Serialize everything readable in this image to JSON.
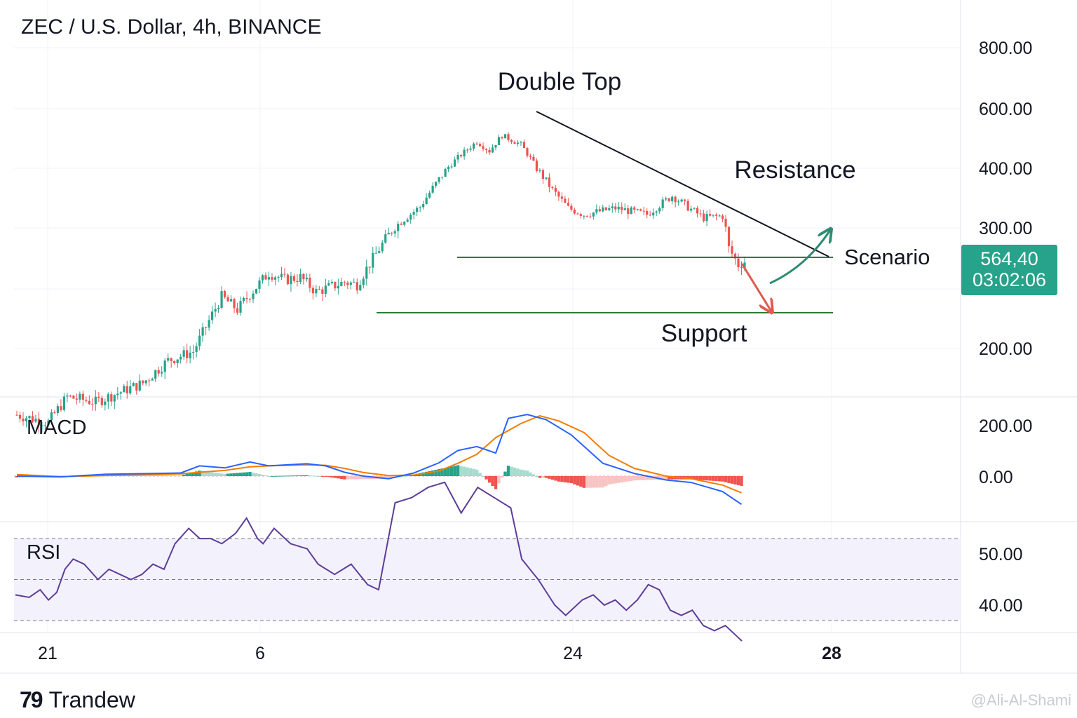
{
  "header": {
    "title": "ZEC / U.S. Dollar, 4h, BINANCE"
  },
  "price_badge": {
    "price": "564,40",
    "countdown": "03:02:06",
    "color": "#26a38a"
  },
  "footer": {
    "logo_mark": "79",
    "brand": "Trandew",
    "watermark": "@Ali-Al-Shami"
  },
  "colors": {
    "up": "#26a38a",
    "down": "#ef5350",
    "macd_line": "#2962ff",
    "signal_line": "#f57c00",
    "rsi_line": "#5e3c99",
    "support_line": "#2e7d32",
    "trend_line": "#131722",
    "arrow_up": "#2e8b74",
    "arrow_down": "#e05a4f"
  },
  "chart_data": [
    {
      "type": "candlestick",
      "panel": "price",
      "y_ticks": [
        "800.00",
        "600.00",
        "400.00",
        "300.00",
        "200.00"
      ],
      "x_ticks": [
        "21",
        "6",
        "24",
        "28"
      ],
      "annotations": {
        "double_top": "Double Top",
        "resistance": "Resistance",
        "scenario": "Scenario",
        "support": "Support"
      },
      "anchors": [
        {
          "i": 0,
          "p": 160
        },
        {
          "i": 10,
          "p": 156
        },
        {
          "i": 16,
          "p": 170
        },
        {
          "i": 25,
          "p": 167
        },
        {
          "i": 40,
          "p": 178
        },
        {
          "i": 48,
          "p": 192
        },
        {
          "i": 56,
          "p": 198
        },
        {
          "i": 60,
          "p": 215
        },
        {
          "i": 65,
          "p": 238
        },
        {
          "i": 70,
          "p": 228
        },
        {
          "i": 80,
          "p": 258
        },
        {
          "i": 85,
          "p": 252
        },
        {
          "i": 90,
          "p": 254
        },
        {
          "i": 95,
          "p": 242
        },
        {
          "i": 104,
          "p": 250
        },
        {
          "i": 108,
          "p": 248
        },
        {
          "i": 114,
          "p": 275
        },
        {
          "i": 120,
          "p": 302
        },
        {
          "i": 128,
          "p": 332
        },
        {
          "i": 136,
          "p": 395
        },
        {
          "i": 140,
          "p": 430
        },
        {
          "i": 146,
          "p": 480
        },
        {
          "i": 150,
          "p": 450
        },
        {
          "i": 154,
          "p": 500
        },
        {
          "i": 160,
          "p": 470
        },
        {
          "i": 165,
          "p": 400
        },
        {
          "i": 170,
          "p": 360
        },
        {
          "i": 175,
          "p": 330
        },
        {
          "i": 180,
          "p": 320
        },
        {
          "i": 190,
          "p": 330
        },
        {
          "i": 200,
          "p": 320
        },
        {
          "i": 208,
          "p": 350
        },
        {
          "i": 214,
          "p": 328
        },
        {
          "i": 218,
          "p": 315
        },
        {
          "i": 224,
          "p": 318
        },
        {
          "i": 226,
          "p": 280
        },
        {
          "i": 229,
          "p": 265
        },
        {
          "i": 231,
          "p": 268
        }
      ],
      "candle_count": 232,
      "horizontal_levels": [
        270,
        232
      ],
      "resistance_line": {
        "start": {
          "i": 156,
          "p": 590
        },
        "end": {
          "i": 252,
          "p": 270
        }
      }
    },
    {
      "type": "line",
      "panel": "macd",
      "title": "MACD",
      "y_ticks": [
        "200.00",
        "0.00"
      ],
      "series": [
        {
          "name": "MACD",
          "points": [
            [
              0,
              0
            ],
            [
              14,
              -3
            ],
            [
              28,
              7
            ],
            [
              44,
              10
            ],
            [
              52,
              12
            ],
            [
              58,
              40
            ],
            [
              66,
              32
            ],
            [
              74,
              55
            ],
            [
              80,
              40
            ],
            [
              92,
              48
            ],
            [
              98,
              40
            ],
            [
              104,
              15
            ],
            [
              110,
              0
            ],
            [
              118,
              -10
            ],
            [
              126,
              12
            ],
            [
              134,
              52
            ],
            [
              140,
              100
            ],
            [
              146,
              115
            ],
            [
              152,
              90
            ],
            [
              156,
              225
            ],
            [
              162,
              240
            ],
            [
              168,
              220
            ],
            [
              176,
              160
            ],
            [
              186,
              50
            ],
            [
              196,
              10
            ],
            [
              206,
              -15
            ],
            [
              214,
              -25
            ],
            [
              224,
              -60
            ],
            [
              230,
              -110
            ]
          ]
        },
        {
          "name": "Signal",
          "points": [
            [
              0,
              6
            ],
            [
              14,
              -2
            ],
            [
              28,
              2
            ],
            [
              44,
              6
            ],
            [
              52,
              9
            ],
            [
              58,
              15
            ],
            [
              66,
              22
            ],
            [
              74,
              36
            ],
            [
              80,
              40
            ],
            [
              92,
              44
            ],
            [
              98,
              42
            ],
            [
              104,
              30
            ],
            [
              110,
              14
            ],
            [
              118,
              2
            ],
            [
              126,
              4
            ],
            [
              134,
              20
            ],
            [
              140,
              50
            ],
            [
              146,
              85
            ],
            [
              152,
              150
            ],
            [
              160,
              205
            ],
            [
              166,
              235
            ],
            [
              172,
              215
            ],
            [
              180,
              170
            ],
            [
              188,
              80
            ],
            [
              196,
              30
            ],
            [
              206,
              0
            ],
            [
              214,
              -10
            ],
            [
              224,
              -35
            ],
            [
              230,
              -65
            ]
          ]
        }
      ],
      "histogram_style": "shaded"
    },
    {
      "type": "line",
      "panel": "rsi",
      "title": "RSI",
      "y_ticks": [
        "50.00",
        "40.00"
      ],
      "band": [
        37,
        53
      ],
      "series": [
        {
          "name": "RSI",
          "points": [
            [
              0,
              42
            ],
            [
              5,
              41.5
            ],
            [
              9,
              43
            ],
            [
              12,
              41
            ],
            [
              15,
              42.5
            ],
            [
              18,
              47
            ],
            [
              21,
              49
            ],
            [
              25,
              48
            ],
            [
              30,
              45
            ],
            [
              34,
              47
            ],
            [
              38,
              46
            ],
            [
              42,
              45
            ],
            [
              46,
              46
            ],
            [
              50,
              48
            ],
            [
              54,
              47
            ],
            [
              58,
              52
            ],
            [
              63,
              55
            ],
            [
              67,
              53
            ],
            [
              71,
              53
            ],
            [
              75,
              52
            ],
            [
              80,
              54
            ],
            [
              84,
              57
            ],
            [
              88,
              53
            ],
            [
              90,
              52
            ],
            [
              94,
              55
            ],
            [
              100,
              52
            ],
            [
              106,
              51
            ],
            [
              110,
              48
            ],
            [
              116,
              46
            ],
            [
              122,
              48
            ],
            [
              128,
              44
            ],
            [
              132,
              43
            ],
            [
              138,
              60
            ],
            [
              144,
              61
            ],
            [
              150,
              63
            ],
            [
              156,
              64
            ],
            [
              162,
              58
            ],
            [
              168,
              63
            ],
            [
              174,
              61
            ],
            [
              180,
              59
            ],
            [
              184,
              49
            ],
            [
              190,
              45
            ],
            [
              196,
              40
            ],
            [
              200,
              38
            ],
            [
              206,
              41
            ],
            [
              210,
              42
            ],
            [
              214,
              40
            ],
            [
              218,
              41
            ],
            [
              222,
              39
            ],
            [
              226,
              41
            ],
            [
              230,
              44
            ],
            [
              234,
              43
            ],
            [
              238,
              39
            ],
            [
              242,
              38
            ],
            [
              246,
              39
            ],
            [
              250,
              36
            ],
            [
              254,
              35
            ],
            [
              258,
              36
            ],
            [
              262,
              34
            ],
            [
              264,
              33
            ]
          ]
        }
      ]
    }
  ]
}
